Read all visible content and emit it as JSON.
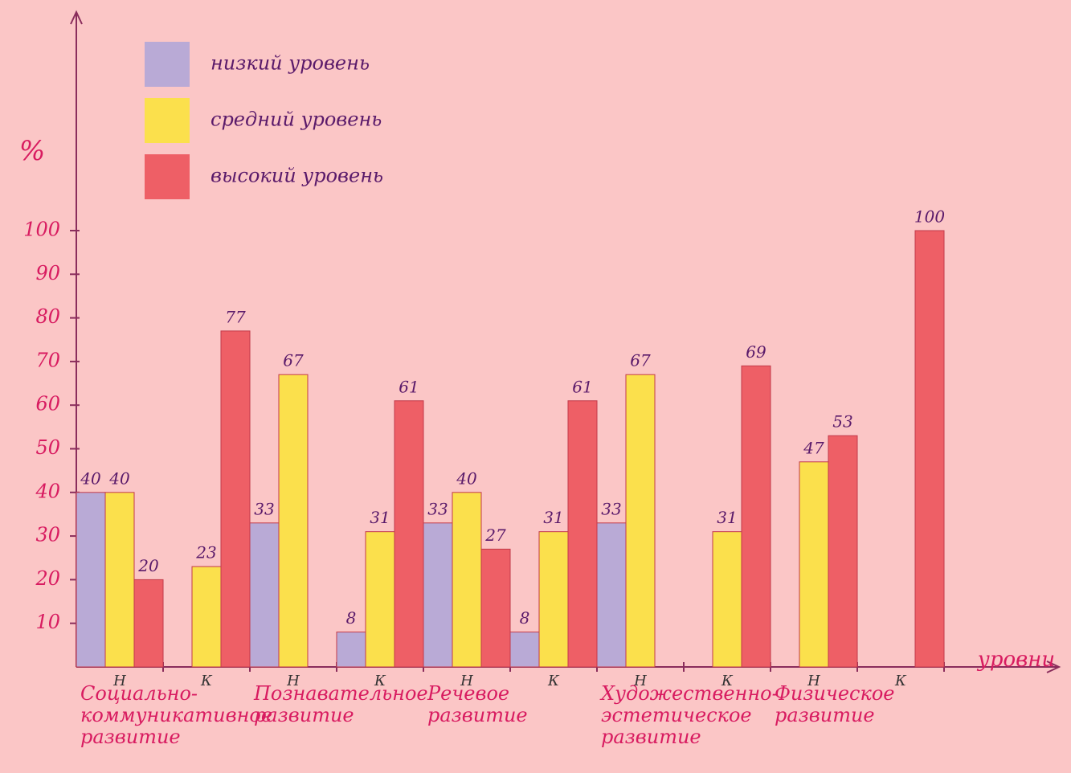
{
  "chart_data": {
    "type": "bar",
    "y_label": "%",
    "x_label": "уровни",
    "categories": [
      "Н",
      "К",
      "Н",
      "К",
      "Н",
      "К",
      "Н",
      "К",
      "Н",
      "К"
    ],
    "groups": [
      "Социально-коммуникативное развитие",
      "Познавательное развитие",
      "Речевое развитие",
      "Художественно-эстетическое развитие",
      "Физическое развитие"
    ],
    "series": [
      {
        "name": "низкий уровень",
        "color": "#b9aad6",
        "values": [
          40,
          null,
          33,
          8,
          33,
          8,
          33,
          null,
          null,
          null
        ]
      },
      {
        "name": "средний уровень",
        "color": "#fbe04c",
        "values": [
          40,
          23,
          67,
          31,
          40,
          31,
          67,
          31,
          47,
          null
        ]
      },
      {
        "name": "высокий уровень",
        "color": "#ee5f66",
        "values": [
          20,
          77,
          null,
          61,
          27,
          61,
          null,
          69,
          53,
          100
        ]
      }
    ],
    "ylim": [
      0,
      100
    ],
    "yticks": [
      10,
      20,
      30,
      40,
      50,
      60,
      70,
      80,
      90,
      100
    ]
  }
}
